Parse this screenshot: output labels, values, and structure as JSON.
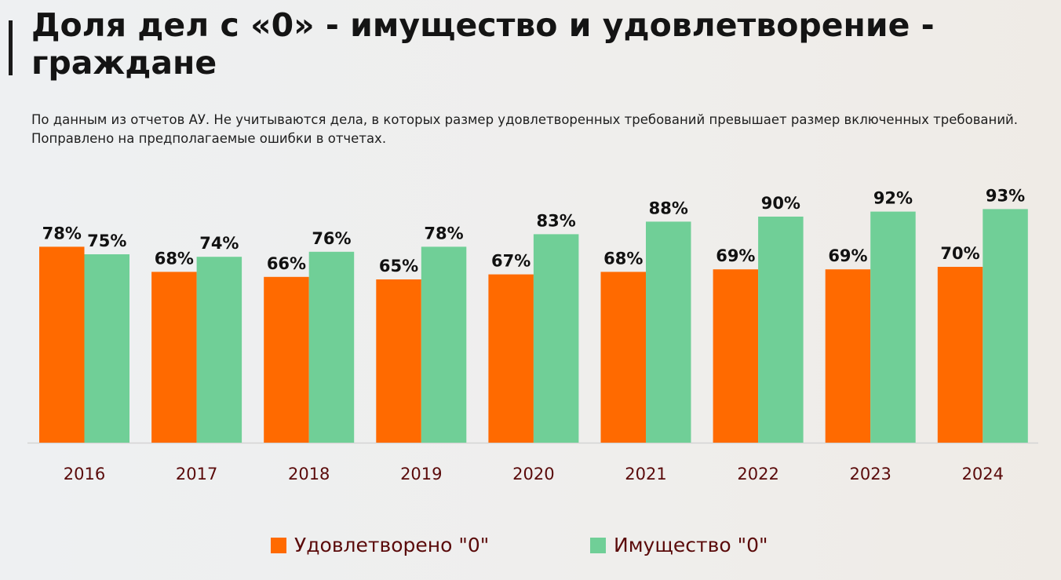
{
  "title": "Доля дел с «0» - имущество и удовлетворение - граждане",
  "subtitle": "По данным из отчетов АУ. Не учитываются дела, в которых размер удовлетворенных требований превышает размер включенных требований. Поправлено на предполагаемые ошибки в отчетах.",
  "chart_data": {
    "type": "bar",
    "categories": [
      "2016",
      "2017",
      "2018",
      "2019",
      "2020",
      "2021",
      "2022",
      "2023",
      "2024"
    ],
    "series": [
      {
        "name": "Удовлетворено \"0\"",
        "color": "#ff6a00",
        "values": [
          78,
          68,
          66,
          65,
          67,
          68,
          69,
          69,
          70
        ]
      },
      {
        "name": "Имущество \"0\"",
        "color": "#70cf97",
        "values": [
          75,
          74,
          76,
          78,
          83,
          88,
          90,
          92,
          93
        ]
      }
    ],
    "value_format": "%",
    "ylim": [
      0,
      100
    ],
    "grid": false,
    "legend_position": "bottom",
    "label_color": "#5a0a0a"
  }
}
